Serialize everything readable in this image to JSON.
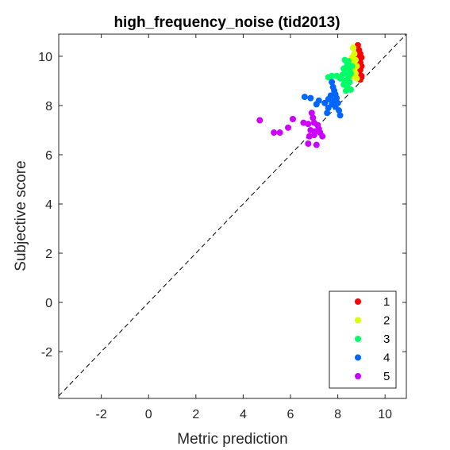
{
  "chart_data": {
    "type": "scatter",
    "title": "high_frequency_noise (tid2013)",
    "xlabel": "Metric prediction",
    "ylabel": "Subjective score",
    "xlim": [
      -3.8,
      10.9
    ],
    "ylim": [
      -3.9,
      10.9
    ],
    "xticks": [
      -2,
      0,
      2,
      4,
      6,
      8,
      10
    ],
    "yticks": [
      -2,
      0,
      2,
      4,
      6,
      8,
      10
    ],
    "grid": false,
    "legend_position": "bottom-right",
    "reference_line": "identity",
    "series": [
      {
        "name": "1",
        "color": "#ff0000",
        "points": [
          [
            8.85,
            10.45
          ],
          [
            8.9,
            10.25
          ],
          [
            8.95,
            10.1
          ],
          [
            8.85,
            10.0
          ],
          [
            9.0,
            9.95
          ],
          [
            8.9,
            9.85
          ],
          [
            8.95,
            9.75
          ],
          [
            9.0,
            9.6
          ],
          [
            8.85,
            9.55
          ],
          [
            8.95,
            9.45
          ],
          [
            8.9,
            9.35
          ],
          [
            9.0,
            9.2
          ],
          [
            8.85,
            9.15
          ],
          [
            8.95,
            9.05
          ],
          [
            8.9,
            9.7
          ]
        ]
      },
      {
        "name": "2",
        "color": "#d9ff00",
        "points": [
          [
            8.65,
            10.35
          ],
          [
            8.7,
            10.1
          ],
          [
            8.6,
            9.95
          ],
          [
            8.75,
            9.85
          ],
          [
            8.65,
            9.7
          ],
          [
            8.8,
            9.6
          ],
          [
            8.6,
            9.5
          ],
          [
            8.7,
            9.45
          ],
          [
            8.75,
            9.3
          ],
          [
            8.65,
            9.2
          ],
          [
            8.8,
            9.1
          ],
          [
            8.55,
            9.35
          ],
          [
            8.7,
            9.8
          ],
          [
            8.6,
            9.2
          ]
        ]
      },
      {
        "name": "3",
        "color": "#00ff66",
        "points": [
          [
            8.3,
            9.85
          ],
          [
            8.45,
            9.8
          ],
          [
            8.4,
            9.65
          ],
          [
            8.6,
            9.6
          ],
          [
            8.25,
            9.5
          ],
          [
            8.5,
            9.45
          ],
          [
            8.35,
            9.35
          ],
          [
            8.55,
            9.3
          ],
          [
            8.2,
            9.25
          ],
          [
            8.45,
            9.15
          ],
          [
            8.1,
            9.1
          ],
          [
            8.3,
            9.0
          ],
          [
            8.5,
            8.95
          ],
          [
            8.25,
            8.85
          ],
          [
            8.4,
            8.75
          ],
          [
            8.55,
            8.65
          ],
          [
            8.35,
            8.6
          ],
          [
            7.95,
            9.2
          ],
          [
            7.75,
            9.2
          ],
          [
            7.6,
            9.15
          ]
        ]
      },
      {
        "name": "4",
        "color": "#0066ff",
        "points": [
          [
            7.75,
            8.95
          ],
          [
            7.8,
            8.75
          ],
          [
            7.85,
            8.6
          ],
          [
            7.9,
            8.45
          ],
          [
            7.95,
            8.3
          ],
          [
            7.7,
            8.4
          ],
          [
            7.6,
            8.25
          ],
          [
            7.85,
            8.2
          ],
          [
            8.0,
            8.1
          ],
          [
            7.75,
            8.05
          ],
          [
            7.9,
            7.95
          ],
          [
            7.6,
            7.9
          ],
          [
            8.05,
            7.8
          ],
          [
            7.45,
            8.1
          ],
          [
            7.2,
            8.2
          ],
          [
            6.85,
            8.3
          ],
          [
            6.6,
            8.35
          ],
          [
            7.1,
            8.05
          ],
          [
            7.55,
            7.7
          ],
          [
            8.1,
            7.6
          ]
        ]
      },
      {
        "name": "5",
        "color": "#cc00ff",
        "points": [
          [
            4.7,
            7.4
          ],
          [
            5.3,
            6.9
          ],
          [
            5.55,
            6.9
          ],
          [
            5.9,
            7.1
          ],
          [
            6.1,
            7.45
          ],
          [
            6.55,
            7.3
          ],
          [
            6.9,
            7.7
          ],
          [
            6.95,
            7.5
          ],
          [
            7.0,
            7.3
          ],
          [
            6.75,
            7.25
          ],
          [
            7.15,
            7.2
          ],
          [
            7.2,
            7.05
          ],
          [
            7.05,
            6.95
          ],
          [
            6.85,
            7.0
          ],
          [
            7.0,
            6.8
          ],
          [
            6.8,
            6.75
          ],
          [
            6.75,
            6.45
          ],
          [
            7.1,
            6.4
          ],
          [
            7.35,
            6.75
          ],
          [
            7.25,
            6.9
          ]
        ]
      }
    ]
  }
}
